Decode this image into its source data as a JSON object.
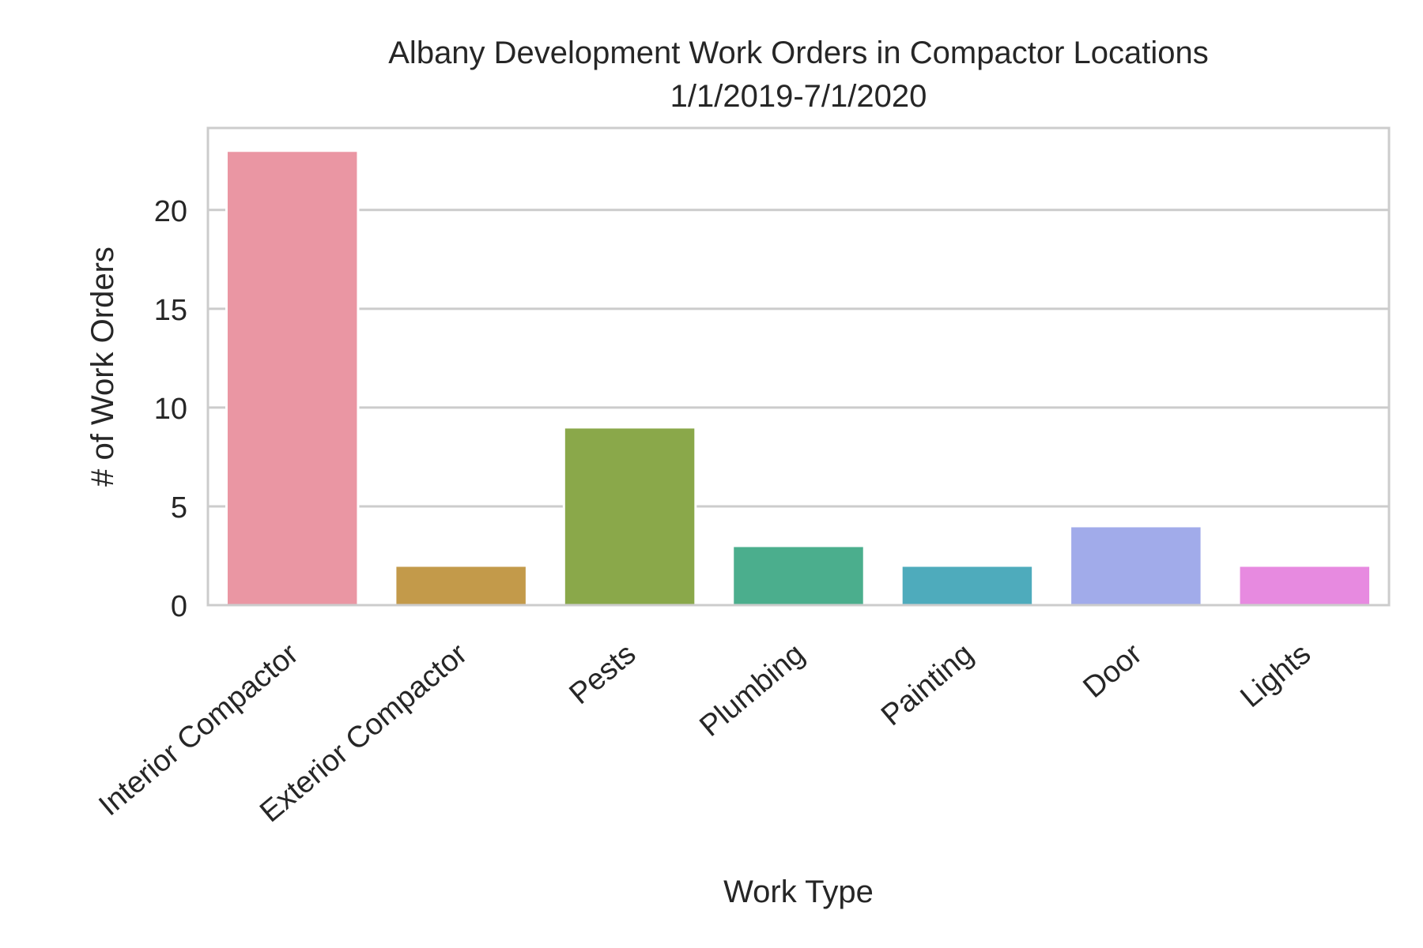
{
  "chart_data": {
    "type": "bar",
    "title": "Albany Development Work Orders in Compactor Locations",
    "subtitle": "1/1/2019-7/1/2020",
    "xlabel": "Work Type",
    "ylabel": "# of Work Orders",
    "categories": [
      "Interior Compactor",
      "Exterior Compactor",
      "Pests",
      "Plumbing",
      "Painting",
      "Door",
      "Lights"
    ],
    "values": [
      23,
      2,
      9,
      3,
      2,
      4,
      2
    ],
    "colors": [
      "#ea96a3",
      "#c39a4a",
      "#8aa84a",
      "#4bae8d",
      "#4eabbc",
      "#a1abea",
      "#e78ae0"
    ],
    "ylim": [
      0,
      24.15
    ],
    "yticks": [
      0,
      5,
      10,
      15,
      20
    ],
    "grid": true,
    "legend": "none"
  }
}
